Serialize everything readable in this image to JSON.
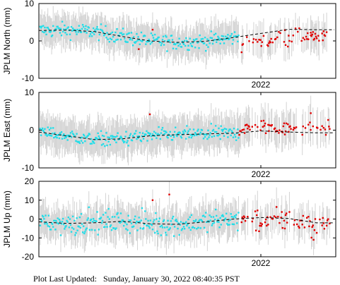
{
  "colors": {
    "background": "#ffffff",
    "errorbar": "#d3d3d3",
    "point_normal": "#22dde8",
    "point_recent": "#e00000",
    "model": "#000000",
    "axes": "#000000"
  },
  "footer": {
    "prefix": "Plot Last Updated:",
    "timestamp": "Sunday, January 30, 2022 08:40:35 PST"
  },
  "chart_data": [
    {
      "type": "scatter",
      "ylabel": "JPLM North (mm)",
      "ylim": [
        -10,
        10
      ],
      "yticks": [
        -10,
        0,
        10
      ],
      "xlim": [
        2021.2,
        2022.27
      ],
      "xticks": [
        {
          "value": 2022.0,
          "label": "2022"
        }
      ],
      "recent_start": 2021.92,
      "scatter_stdev": 1.4,
      "errorbar_half_mm": 4.5,
      "model_x": [
        2021.2,
        2021.3,
        2021.4,
        2021.5,
        2021.6,
        2021.7,
        2021.8,
        2021.9,
        2022.0,
        2022.1,
        2022.2
      ],
      "model_y": [
        2.8,
        2.9,
        2.5,
        1.2,
        0.0,
        -0.4,
        -0.1,
        0.9,
        2.0,
        3.1,
        3.0
      ],
      "outliers": [
        {
          "x": 2021.56,
          "y": -2.2
        },
        {
          "x": 2021.61,
          "y": 3.0
        },
        {
          "x": 2022.18,
          "y": 1.5
        }
      ],
      "recent_shift": -2.5
    },
    {
      "type": "scatter",
      "ylabel": "JPLM East (mm)",
      "ylim": [
        -10,
        10
      ],
      "yticks": [
        -10,
        0,
        10
      ],
      "xlim": [
        2021.2,
        2022.27
      ],
      "xticks": [
        {
          "value": 2022.0,
          "label": "2022"
        }
      ],
      "recent_start": 2021.92,
      "scatter_stdev": 1.3,
      "errorbar_half_mm": 4.8,
      "model_x": [
        2021.2,
        2021.3,
        2021.4,
        2021.5,
        2021.6,
        2021.7,
        2021.8,
        2021.9,
        2022.0,
        2022.1,
        2022.2
      ],
      "model_y": [
        -0.5,
        -1.5,
        -2.5,
        -2.3,
        -1.5,
        -1.2,
        -1.0,
        -0.8,
        -0.2,
        -0.5,
        -0.7
      ],
      "outliers": [
        {
          "x": 2021.6,
          "y": 4.2
        },
        {
          "x": 2022.18,
          "y": 4.5
        }
      ],
      "recent_shift": 1.5
    },
    {
      "type": "scatter",
      "ylabel": "JPLM Up (mm)",
      "ylim": [
        -20,
        20
      ],
      "yticks": [
        -20,
        -10,
        0,
        10,
        20
      ],
      "xlim": [
        2021.2,
        2022.27
      ],
      "xticks": [
        {
          "value": 2022.0,
          "label": "2022"
        }
      ],
      "recent_start": 2021.92,
      "scatter_stdev": 4.0,
      "errorbar_half_mm": 9.0,
      "model_x": [
        2021.2,
        2021.3,
        2021.4,
        2021.5,
        2021.6,
        2021.7,
        2021.8,
        2021.9,
        2022.0,
        2022.1,
        2022.2
      ],
      "model_y": [
        -1.5,
        -2.3,
        -2.0,
        -1.2,
        -2.5,
        -2.8,
        -1.5,
        0.0,
        0.8,
        0.3,
        -2.0
      ],
      "outliers": [
        {
          "x": 2021.67,
          "y": 13.0
        },
        {
          "x": 2021.61,
          "y": 10.0
        },
        {
          "x": 2022.19,
          "y": -11.0
        }
      ],
      "recent_shift": -1.5
    }
  ]
}
